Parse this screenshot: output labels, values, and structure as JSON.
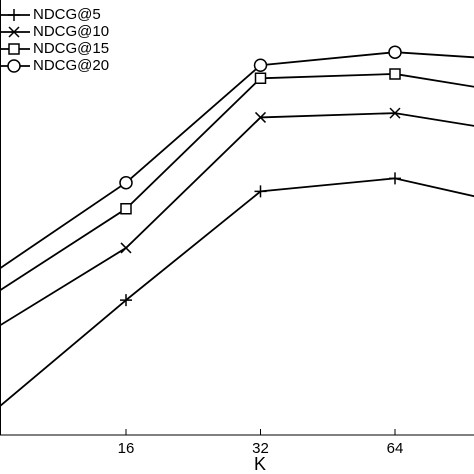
{
  "chart_data": {
    "type": "line",
    "xlabel": "K",
    "categories": [
      null,
      16,
      32,
      64,
      null
    ],
    "ylim": [
      0,
      1
    ],
    "series": [
      {
        "name": "NDCG@5",
        "color": "#000000",
        "marker": "plus",
        "values": [
          0.05,
          0.31,
          0.56,
          0.59,
          0.52
        ]
      },
      {
        "name": "NDCG@10",
        "color": "#000000",
        "marker": "cross",
        "values": [
          0.24,
          0.43,
          0.73,
          0.74,
          0.69
        ]
      },
      {
        "name": "NDCG@15",
        "color": "#000000",
        "marker": "square",
        "values": [
          0.32,
          0.52,
          0.82,
          0.83,
          0.78
        ]
      },
      {
        "name": "NDCG@20",
        "color": "#000000",
        "marker": "circle",
        "values": [
          0.37,
          0.58,
          0.85,
          0.88,
          0.86
        ]
      }
    ]
  }
}
